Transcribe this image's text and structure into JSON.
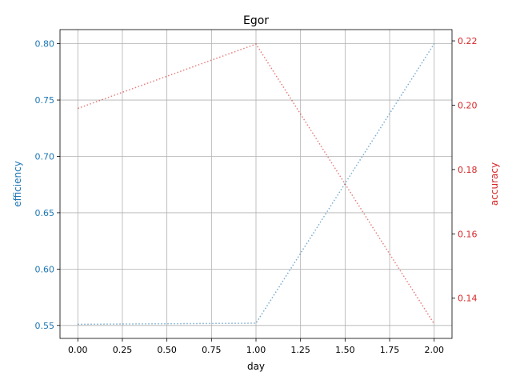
{
  "chart_data": {
    "type": "line",
    "title": "Egor",
    "xlabel": "day",
    "ylabel_left": "efficiency",
    "ylabel_right": "accuracy",
    "x": [
      0.0,
      1.0,
      2.0
    ],
    "x_ticks": [
      0.0,
      0.25,
      0.5,
      0.75,
      1.0,
      1.25,
      1.5,
      1.75,
      2.0
    ],
    "x_tick_labels": [
      "0.00",
      "0.25",
      "0.50",
      "0.75",
      "1.00",
      "1.25",
      "1.50",
      "1.75",
      "2.00"
    ],
    "xlim": [
      -0.1,
      2.1
    ],
    "grid": true,
    "series": [
      {
        "axis": "left",
        "color": "#1f77b4",
        "linestyle": "dotted",
        "values": [
          0.551,
          0.552,
          0.8
        ]
      },
      {
        "axis": "right",
        "color": "#d62728",
        "linestyle": "dotted",
        "values": [
          0.199,
          0.219,
          0.132
        ]
      }
    ],
    "y_left": {
      "lim": [
        0.5385,
        0.8125
      ],
      "ticks": [
        0.55,
        0.6,
        0.65,
        0.7,
        0.75,
        0.8
      ],
      "tick_labels": [
        "0.55",
        "0.60",
        "0.65",
        "0.70",
        "0.75",
        "0.80"
      ],
      "color": "#1f77b4"
    },
    "y_right": {
      "lim": [
        0.1275,
        0.2235
      ],
      "ticks": [
        0.14,
        0.16,
        0.18,
        0.2,
        0.22
      ],
      "tick_labels": [
        "0.14",
        "0.16",
        "0.18",
        "0.20",
        "0.22"
      ],
      "color": "#d62728"
    }
  }
}
